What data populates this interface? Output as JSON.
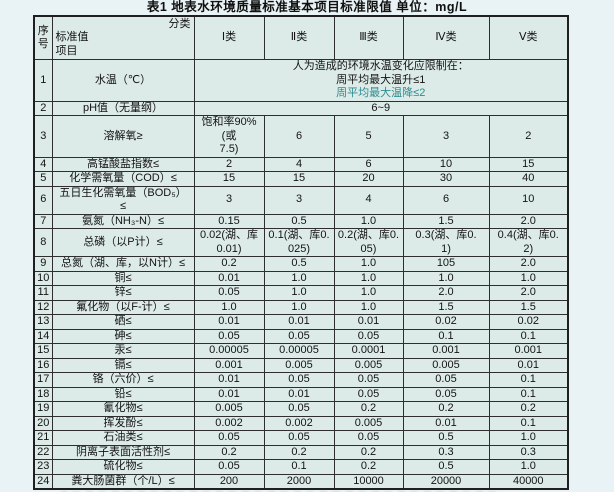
{
  "title": "表1  地表水环境质量标准基本项目标准限值  单位：mg/L",
  "header": {
    "serial": "序号",
    "corner_top_right": "分类",
    "corner_left_1": "标准值",
    "corner_left_2": "项目",
    "classes": [
      "Ⅰ类",
      "Ⅱ类",
      "Ⅲ类",
      "Ⅳ类",
      "Ⅴ类"
    ]
  },
  "colors": {
    "accent_teal": "#2c8c92",
    "page_background": "#e9f2f4",
    "table_background": "#dcebe7",
    "border": "#2e2e2e"
  },
  "rows": [
    {
      "num": "1",
      "label": "水温（℃）",
      "cells": [
        {
          "colspan": 5,
          "lines": [
            "人为造成的环境水温变化应限制在：",
            "周平均最大温升≤1",
            "周平均最大温降≤2"
          ],
          "accent_line": 2
        }
      ]
    },
    {
      "num": "2",
      "label": "pH值（无量纲）",
      "cells": [
        {
          "colspan": 5,
          "lines": [
            "6~9"
          ]
        }
      ]
    },
    {
      "num": "3",
      "label": "溶解氧≥",
      "cells": [
        {
          "lines": [
            "饱和率90%(或",
            "7.5)"
          ]
        },
        "6",
        "5",
        "3",
        "2"
      ]
    },
    {
      "num": "4",
      "label": "高锰酸盐指数≤",
      "cells": [
        "2",
        "4",
        "6",
        "10",
        "15"
      ]
    },
    {
      "num": "5",
      "label": "化学需氧量（COD）≤",
      "cells": [
        "15",
        "15",
        "20",
        "30",
        "40"
      ]
    },
    {
      "num": "6",
      "label": "五日生化需氧量（BOD₅）\n≤",
      "cells": [
        "3",
        "3",
        "4",
        "6",
        "10"
      ]
    },
    {
      "num": "7",
      "label": "氨氮（NH₃-N）≤",
      "cells": [
        "0.15",
        "0.5",
        "1.0",
        "1.5",
        "2.0"
      ]
    },
    {
      "num": "8",
      "label": "总磷（以P计）≤",
      "cells": [
        {
          "lines": [
            "0.02(湖、库",
            "0.01)"
          ]
        },
        {
          "lines": [
            "0.1(湖、库0.",
            "025)"
          ]
        },
        {
          "lines": [
            "0.2(湖、库0.",
            "05)"
          ]
        },
        {
          "lines": [
            "0.3(湖、库0.",
            "1)"
          ]
        },
        {
          "lines": [
            "0.4(湖、库0.",
            "2)"
          ]
        }
      ]
    },
    {
      "num": "9",
      "label": "总氮（湖、库，以N计）≤",
      "cells": [
        "0.2",
        "0.5",
        "1.0",
        "105",
        "2.0"
      ]
    },
    {
      "num": "10",
      "label": "铜≤",
      "cells": [
        "0.01",
        "1.0",
        "1.0",
        "1.0",
        "1.0"
      ]
    },
    {
      "num": "11",
      "label": "锌≤",
      "cells": [
        "0.05",
        "1.0",
        "1.0",
        "2.0",
        "2.0"
      ]
    },
    {
      "num": "12",
      "label": "氟化物（以F-计）≤",
      "cells": [
        "1.0",
        "1.0",
        "1.0",
        "1.5",
        "1.5"
      ]
    },
    {
      "num": "13",
      "label": "硒≤",
      "cells": [
        "0.01",
        "0.01",
        "0.01",
        "0.02",
        "0.02"
      ]
    },
    {
      "num": "14",
      "label": "砷≤",
      "cells": [
        "0.05",
        "0.05",
        "0.05",
        "0.1",
        "0.1"
      ]
    },
    {
      "num": "15",
      "label": "汞≤",
      "cells": [
        "0.00005",
        "0.00005",
        "0.0001",
        "0.001",
        "0.001"
      ]
    },
    {
      "num": "16",
      "label": "镉≤",
      "cells": [
        "0.001",
        "0.005",
        "0.005",
        "0.005",
        "0.01"
      ]
    },
    {
      "num": "17",
      "label": "铬（六价）≤",
      "cells": [
        "0.01",
        "0.05",
        "0.05",
        "0.05",
        "0.1"
      ]
    },
    {
      "num": "18",
      "label": "铅≤",
      "cells": [
        "0.01",
        "0.01",
        "0.05",
        "0.05",
        "0.1"
      ]
    },
    {
      "num": "19",
      "label": "氰化物≤",
      "cells": [
        "0.005",
        "0.05",
        "0.2",
        "0.2",
        "0.2"
      ]
    },
    {
      "num": "20",
      "label": "挥发酚≤",
      "cells": [
        "0.002",
        "0.002",
        "0.005",
        "0.01",
        "0.1"
      ]
    },
    {
      "num": "21",
      "label": "石油类≤",
      "cells": [
        "0.05",
        "0.05",
        "0.05",
        "0.5",
        "1.0"
      ]
    },
    {
      "num": "22",
      "label": "阴离子表面活性剂≤",
      "cells": [
        "0.2",
        "0.2",
        "0.2",
        "0.3",
        "0.3"
      ]
    },
    {
      "num": "23",
      "label": "硫化物≤",
      "cells": [
        "0.05",
        "0.1",
        "0.2",
        "0.5",
        "1.0"
      ]
    },
    {
      "num": "24",
      "label": "粪大肠菌群（个/L）≤",
      "cells": [
        "200",
        "2000",
        "10000",
        "20000",
        "40000"
      ]
    }
  ]
}
